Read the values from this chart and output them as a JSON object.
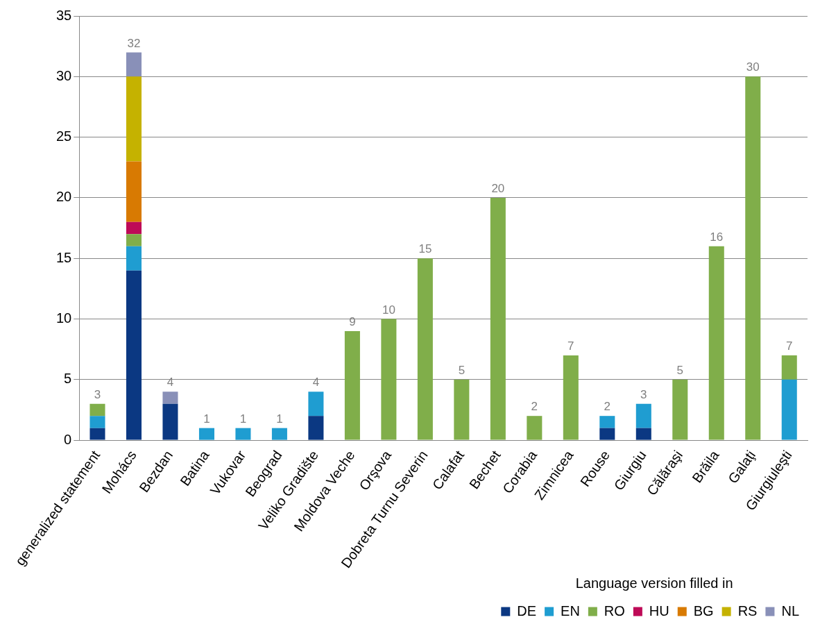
{
  "chart_data": {
    "type": "bar",
    "stacked": true,
    "legend_title": "Language version filled in",
    "legend": "bottom right",
    "grid": "y",
    "categories": [
      "generalized statement",
      "Mohács",
      "Bezdan",
      "Batina",
      "Vukovar",
      "Beograd",
      "Veliko Gradište",
      "Moldova Veche",
      "Orşova",
      "Dobreta Turnu Severin",
      "Calafat",
      "Bechet",
      "Corabia",
      "Zimnicea",
      "Rouse",
      "Giurgiu",
      "Călăraşi",
      "Brăila",
      "Galaţi",
      "Giurgiuleşti"
    ],
    "ylim": [
      0,
      35
    ],
    "yticks": [
      0,
      5,
      10,
      15,
      20,
      25,
      30,
      35
    ],
    "series": [
      {
        "name": "DE",
        "color": "#0b3882",
        "values": [
          1,
          14,
          3,
          null,
          null,
          null,
          2,
          null,
          null,
          null,
          null,
          null,
          null,
          null,
          1,
          1,
          null,
          null,
          null,
          null
        ]
      },
      {
        "name": "EN",
        "color": "#1f9dd1",
        "values": [
          1,
          2,
          null,
          1,
          1,
          1,
          2,
          null,
          null,
          null,
          null,
          null,
          null,
          null,
          1,
          2,
          null,
          null,
          null,
          5
        ]
      },
      {
        "name": "RO",
        "color": "#80ae4a",
        "values": [
          1,
          1,
          null,
          null,
          null,
          null,
          null,
          9,
          10,
          15,
          5,
          20,
          2,
          7,
          null,
          null,
          5,
          16,
          30,
          2
        ]
      },
      {
        "name": "HU",
        "color": "#be0a57",
        "values": [
          null,
          1,
          null,
          null,
          null,
          null,
          null,
          null,
          null,
          null,
          null,
          null,
          null,
          null,
          null,
          null,
          null,
          null,
          null,
          null
        ]
      },
      {
        "name": "BG",
        "color": "#d87a02",
        "values": [
          null,
          5,
          null,
          null,
          null,
          null,
          null,
          null,
          null,
          null,
          null,
          null,
          null,
          null,
          null,
          null,
          null,
          null,
          null,
          null
        ]
      },
      {
        "name": "RS",
        "color": "#c5b200",
        "values": [
          null,
          7,
          null,
          null,
          null,
          null,
          null,
          null,
          null,
          null,
          null,
          null,
          null,
          null,
          null,
          null,
          null,
          null,
          null,
          null
        ]
      },
      {
        "name": "NL",
        "color": "#8990b8",
        "values": [
          null,
          2,
          1,
          null,
          null,
          null,
          null,
          null,
          null,
          null,
          null,
          null,
          null,
          null,
          null,
          null,
          null,
          null,
          null,
          null
        ]
      }
    ],
    "totals": [
      "3",
      "32",
      "4",
      "1",
      "1",
      "1",
      "4",
      "9",
      "10",
      "15",
      "5",
      "20",
      "2",
      "7",
      "2",
      "3",
      "5",
      "16",
      "30",
      "7"
    ]
  }
}
